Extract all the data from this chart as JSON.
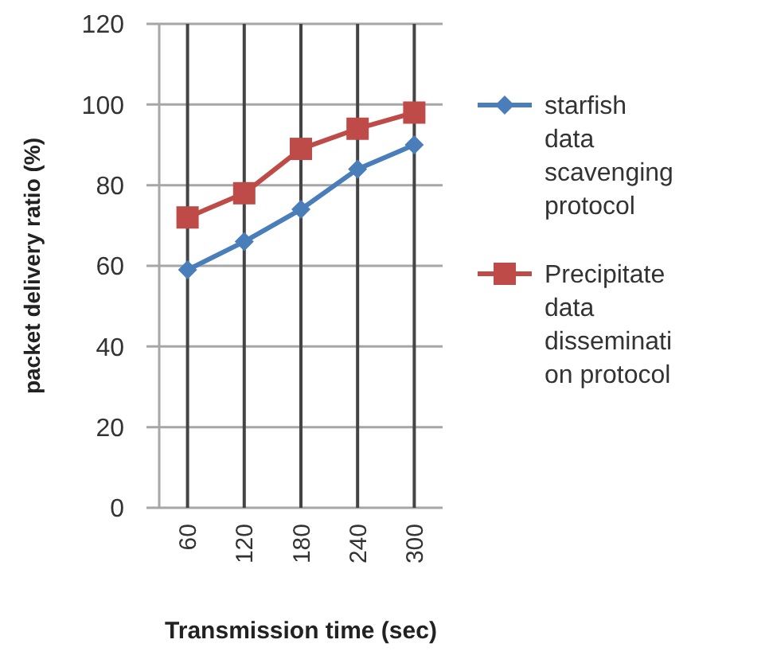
{
  "chart_data": {
    "type": "line",
    "xlabel": "Transmission time (sec)",
    "ylabel": "packet delivery ratio (%)",
    "categories": [
      "60",
      "120",
      "180",
      "240",
      "300"
    ],
    "series": [
      {
        "name": "starfish data scavenging protocol",
        "color": "#4a7ebb",
        "values": [
          59,
          66,
          74,
          84,
          90
        ],
        "marker": "diamond"
      },
      {
        "name": "Precipitate data dissemination protocol",
        "color": "#be4b48",
        "values": [
          72,
          78,
          89,
          94,
          98
        ],
        "marker": "square"
      }
    ],
    "ylim": [
      0,
      120
    ],
    "yticks": [
      0,
      20,
      40,
      60,
      80,
      100,
      120
    ],
    "grid": true,
    "legend": "right"
  }
}
